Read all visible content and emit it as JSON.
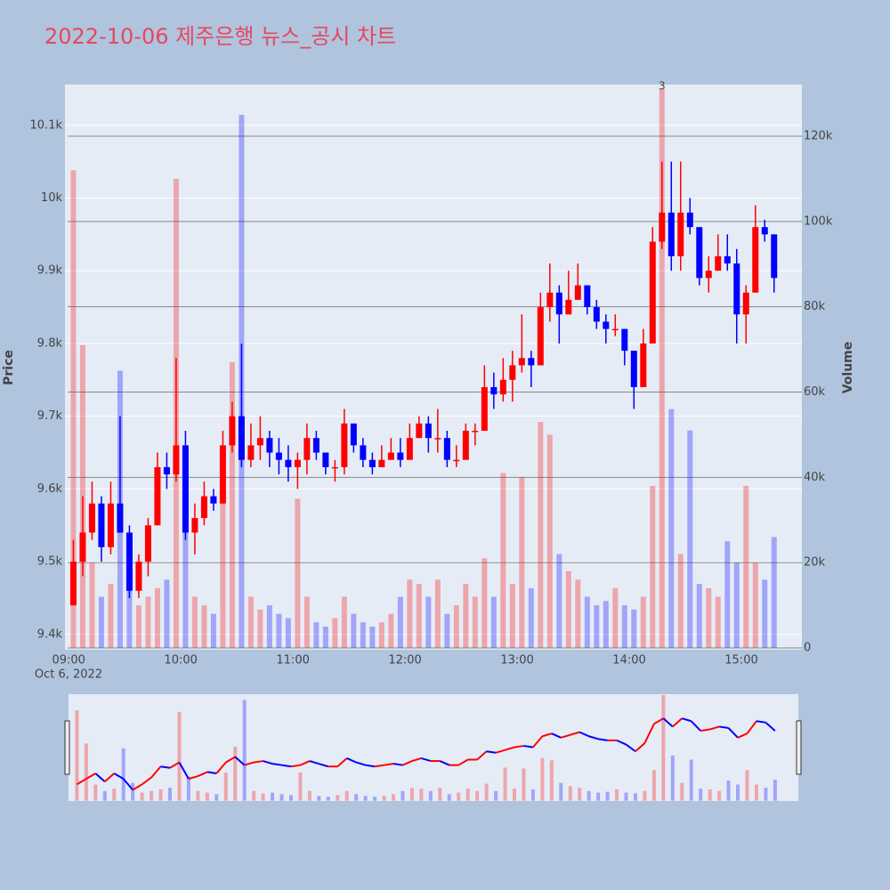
{
  "chart_data": {
    "type": "candlestick",
    "title": "2022-10-06 제주은행 뉴스_공시 차트",
    "title_color": "#e8475f",
    "y_label": "Price",
    "y2_label": "Volume",
    "x_date_label": "Oct 6, 2022",
    "increasing_color": "#ff0000",
    "decreasing_color": "#0000ff",
    "grid": true,
    "xlim": [
      "08:58",
      "15:30"
    ],
    "xticks": [
      "09:00",
      "10:00",
      "11:00",
      "12:00",
      "13:00",
      "14:00",
      "15:00"
    ],
    "ylim": [
      9379,
      10156
    ],
    "yticks": [
      {
        "value": 9400,
        "label": "9.4k"
      },
      {
        "value": 9500,
        "label": "9.5k"
      },
      {
        "value": 9600,
        "label": "9.6k"
      },
      {
        "value": 9700,
        "label": "9.7k"
      },
      {
        "value": 9800,
        "label": "9.8k"
      },
      {
        "value": 9900,
        "label": "9.9k"
      },
      {
        "value": 10000,
        "label": "10k"
      },
      {
        "value": 10100,
        "label": "10.1k"
      }
    ],
    "y2lim": [
      -417,
      132100
    ],
    "y2ticks": [
      0,
      {
        "value": 20000,
        "label": "20k"
      },
      {
        "value": 40000,
        "label": "40k"
      },
      {
        "value": 60000,
        "label": "60k"
      },
      {
        "value": 80000,
        "label": "80k"
      },
      {
        "value": 100000,
        "label": "100k"
      },
      {
        "value": 120000,
        "label": "120k"
      }
    ],
    "annotations": [
      {
        "text": "3",
        "x": "14:15"
      }
    ],
    "x": [
      "09:00",
      "09:05",
      "09:10",
      "09:15",
      "09:20",
      "09:25",
      "09:30",
      "09:35",
      "09:40",
      "09:45",
      "09:50",
      "09:55",
      "10:00",
      "10:05",
      "10:10",
      "10:15",
      "10:20",
      "10:25",
      "10:30",
      "10:35",
      "10:40",
      "10:45",
      "10:50",
      "10:55",
      "11:00",
      "11:05",
      "11:10",
      "11:15",
      "11:20",
      "11:25",
      "11:30",
      "11:35",
      "11:40",
      "11:45",
      "11:50",
      "11:55",
      "12:00",
      "12:05",
      "12:10",
      "12:15",
      "12:20",
      "12:25",
      "12:30",
      "12:35",
      "12:40",
      "12:45",
      "12:50",
      "12:55",
      "13:00",
      "13:05",
      "13:10",
      "13:15",
      "13:20",
      "13:25",
      "13:30",
      "13:35",
      "13:40",
      "13:45",
      "13:50",
      "13:55",
      "14:00",
      "14:05",
      "14:10",
      "14:15",
      "14:20",
      "14:25",
      "14:30",
      "14:35",
      "14:40",
      "14:45",
      "14:50",
      "14:55",
      "15:00",
      "15:05",
      "15:10",
      "15:15"
    ],
    "open": [
      9440,
      9500,
      9540,
      9580,
      9520,
      9580,
      9540,
      9460,
      9500,
      9550,
      9630,
      9620,
      9660,
      9540,
      9560,
      9590,
      9580,
      9660,
      9700,
      9640,
      9660,
      9670,
      9650,
      9640,
      9630,
      9640,
      9670,
      9650,
      9630,
      9630,
      9690,
      9660,
      9640,
      9630,
      9640,
      9650,
      9640,
      9670,
      9690,
      9670,
      9670,
      9640,
      9640,
      9680,
      9680,
      9740,
      9730,
      9750,
      9770,
      9780,
      9770,
      9850,
      9870,
      9840,
      9860,
      9880,
      9850,
      9830,
      9820,
      9820,
      9790,
      9740,
      9800,
      9940,
      9980,
      9920,
      9980,
      9960,
      9890,
      9900,
      9920,
      9910,
      9840,
      9870,
      9960,
      9950
    ],
    "high": [
      9530,
      9590,
      9610,
      9590,
      9610,
      9700,
      9550,
      9510,
      9560,
      9650,
      9650,
      9780,
      9680,
      9580,
      9610,
      9600,
      9680,
      9720,
      9800,
      9690,
      9700,
      9680,
      9670,
      9660,
      9650,
      9690,
      9680,
      9650,
      9640,
      9710,
      9690,
      9670,
      9650,
      9660,
      9670,
      9670,
      9690,
      9700,
      9700,
      9710,
      9680,
      9660,
      9690,
      9690,
      9770,
      9760,
      9780,
      9790,
      9840,
      9790,
      9870,
      9910,
      9880,
      9900,
      9910,
      9880,
      9860,
      9840,
      9840,
      9820,
      9790,
      9820,
      9960,
      10050,
      10050,
      10050,
      10000,
      9960,
      9920,
      9950,
      9950,
      9930,
      9880,
      9990,
      9970,
      9950
    ],
    "low": [
      9440,
      9480,
      9530,
      9500,
      9510,
      9540,
      9450,
      9450,
      9480,
      9550,
      9600,
      9610,
      9530,
      9510,
      9550,
      9570,
      9580,
      9650,
      9630,
      9630,
      9640,
      9630,
      9620,
      9610,
      9600,
      9620,
      9640,
      9620,
      9610,
      9620,
      9650,
      9630,
      9620,
      9630,
      9640,
      9630,
      9640,
      9670,
      9650,
      9650,
      9630,
      9630,
      9640,
      9660,
      9680,
      9710,
      9720,
      9720,
      9760,
      9740,
      9770,
      9830,
      9800,
      9840,
      9860,
      9840,
      9820,
      9800,
      9810,
      9770,
      9710,
      9740,
      9800,
      9930,
      9900,
      9900,
      9950,
      9880,
      9870,
      9900,
      9900,
      9800,
      9800,
      9870,
      9940,
      9870
    ],
    "close": [
      9500,
      9540,
      9580,
      9520,
      9580,
      9540,
      9460,
      9500,
      9550,
      9630,
      9620,
      9660,
      9540,
      9560,
      9590,
      9580,
      9660,
      9700,
      9640,
      9660,
      9670,
      9650,
      9640,
      9630,
      9640,
      9670,
      9650,
      9630,
      9630,
      9690,
      9660,
      9640,
      9630,
      9640,
      9650,
      9640,
      9670,
      9690,
      9670,
      9670,
      9640,
      9640,
      9680,
      9680,
      9740,
      9730,
      9750,
      9770,
      9780,
      9770,
      9850,
      9870,
      9840,
      9860,
      9880,
      9850,
      9830,
      9820,
      9820,
      9790,
      9740,
      9800,
      9940,
      9980,
      9920,
      9980,
      9960,
      9890,
      9900,
      9920,
      9910,
      9840,
      9870,
      9960,
      9950,
      9890
    ],
    "volume": [
      112000,
      71000,
      20000,
      12000,
      15000,
      65000,
      22000,
      10000,
      12000,
      14000,
      16000,
      110000,
      30000,
      12000,
      10000,
      8000,
      35000,
      67000,
      125000,
      12000,
      9000,
      10000,
      8000,
      7000,
      35000,
      12000,
      6000,
      5000,
      7000,
      12000,
      8000,
      6000,
      5000,
      6000,
      8000,
      12000,
      16000,
      15000,
      12000,
      16000,
      8000,
      10000,
      15000,
      12000,
      21000,
      12000,
      41000,
      15000,
      40000,
      14000,
      53000,
      50000,
      22000,
      18000,
      16000,
      12000,
      10000,
      11000,
      14000,
      10000,
      9000,
      12000,
      38000,
      131000,
      56000,
      22000,
      51000,
      15000,
      14000,
      12000,
      25000,
      20000,
      38000,
      20000,
      16000,
      26000
    ]
  }
}
